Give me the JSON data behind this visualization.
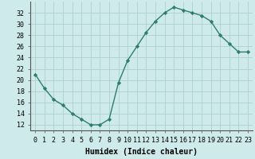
{
  "x": [
    0,
    1,
    2,
    3,
    4,
    5,
    6,
    7,
    8,
    9,
    10,
    11,
    12,
    13,
    14,
    15,
    16,
    17,
    18,
    19,
    20,
    21,
    22,
    23
  ],
  "y": [
    21,
    18.5,
    16.5,
    15.5,
    14,
    13,
    12,
    12,
    13,
    19.5,
    23.5,
    26,
    28.5,
    30.5,
    32,
    33,
    32.5,
    32,
    31.5,
    30.5,
    28,
    26.5,
    25,
    25
  ],
  "line_color": "#2e7d6e",
  "marker": "D",
  "marker_size": 2.2,
  "line_width": 1.0,
  "bg_color": "#ceeaea",
  "grid_color": "#aed0d0",
  "xlabel": "Humidex (Indice chaleur)",
  "xlim": [
    -0.5,
    23.5
  ],
  "ylim": [
    11,
    34
  ],
  "yticks": [
    12,
    14,
    16,
    18,
    20,
    22,
    24,
    26,
    28,
    30,
    32
  ],
  "xtick_labels": [
    "0",
    "1",
    "2",
    "3",
    "4",
    "5",
    "6",
    "7",
    "8",
    "9",
    "10",
    "11",
    "12",
    "13",
    "14",
    "15",
    "16",
    "17",
    "18",
    "19",
    "20",
    "21",
    "22",
    "23"
  ],
  "xlabel_fontsize": 7,
  "tick_fontsize": 6
}
